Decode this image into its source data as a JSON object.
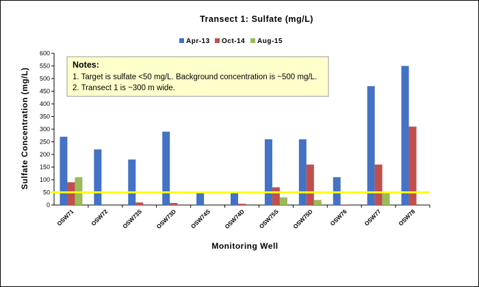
{
  "chart_data": {
    "type": "bar",
    "title": "Transect 1: Sulfate (mg/L)",
    "xlabel": "Monitoring Well",
    "ylabel": "Sulfate Concentration (mg/L)",
    "ylim": [
      0,
      600
    ],
    "yticks": [
      0,
      50,
      100,
      150,
      200,
      250,
      300,
      350,
      400,
      450,
      500,
      550,
      600
    ],
    "grid": false,
    "legend_position": "top",
    "categories": [
      "OSW71",
      "OSW72",
      "OSW73S",
      "OSW73D",
      "OSW74S",
      "OSW74D",
      "OSW75S",
      "OSW75D",
      "OSW76",
      "OSW77",
      "OSW78"
    ],
    "series": [
      {
        "name": "Apr-13",
        "color": "#4472C4",
        "values": [
          270,
          220,
          180,
          290,
          50,
          50,
          260,
          260,
          110,
          470,
          550
        ]
      },
      {
        "name": "Oct-14",
        "color": "#C0504D",
        "values": [
          90,
          null,
          10,
          8,
          null,
          5,
          70,
          160,
          2,
          160,
          310
        ]
      },
      {
        "name": "Aug-15",
        "color": "#9BBB59",
        "values": [
          110,
          null,
          null,
          null,
          null,
          null,
          30,
          20,
          null,
          50,
          null
        ]
      }
    ],
    "reference_line": {
      "value": 50,
      "color": "#FFFF00"
    },
    "notes": {
      "heading": "Notes:",
      "lines": [
        "1. Target is sulfate <50 mg/L. Background concentration is ~500 mg/L.",
        "2. Transect 1 is ~300 m wide."
      ]
    }
  }
}
